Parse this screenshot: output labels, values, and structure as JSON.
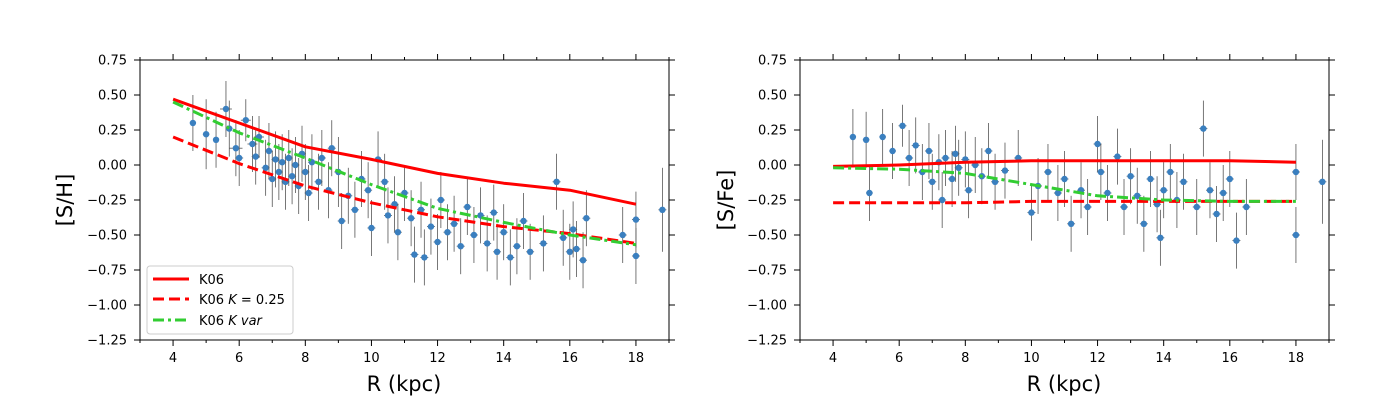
{
  "chart_data": [
    {
      "type": "scatter",
      "xlabel": "R (kpc)",
      "ylabel": "[S/H]",
      "xlim": [
        3,
        19
      ],
      "ylim": [
        -1.25,
        0.75
      ],
      "xticks": [
        4,
        6,
        8,
        10,
        12,
        14,
        16,
        18
      ],
      "xtick_labels": [
        "4",
        "6",
        "8",
        "10",
        "12",
        "14",
        "16",
        "18"
      ],
      "yticks": [
        0.75,
        0.5,
        0.25,
        0.0,
        -0.25,
        -0.5,
        -0.75,
        -1.0,
        -1.25
      ],
      "ytick_labels": [
        "0.75",
        "0.50",
        "0.25",
        "0.00",
        "−0.25",
        "−0.50",
        "−0.75",
        "−1.00",
        "−1.25"
      ],
      "legend": {
        "position": "lower-left",
        "entries": [
          "K06",
          "K06 K = 0.25",
          "K06 K var"
        ]
      },
      "lines": [
        {
          "name": "K06",
          "color": "#ff0000",
          "style": "solid",
          "x": [
            4,
            6,
            8,
            10,
            12,
            14,
            16,
            18
          ],
          "y": [
            0.47,
            0.3,
            0.13,
            0.04,
            -0.06,
            -0.13,
            -0.18,
            -0.28
          ]
        },
        {
          "name": "K06 K = 0.25",
          "color": "#ff0000",
          "style": "dashed",
          "x": [
            4,
            6,
            8,
            10,
            12,
            14,
            16,
            18
          ],
          "y": [
            0.2,
            0.01,
            -0.15,
            -0.27,
            -0.37,
            -0.44,
            -0.49,
            -0.56
          ]
        },
        {
          "name": "K06 K var",
          "color": "#32cd32",
          "style": "dashdot",
          "x": [
            4,
            6,
            8,
            10,
            12,
            14,
            16,
            18
          ],
          "y": [
            0.45,
            0.23,
            0.05,
            -0.14,
            -0.31,
            -0.41,
            -0.5,
            -0.57
          ]
        }
      ],
      "points": [
        [
          4.6,
          0.3,
          0.2,
          0.07
        ],
        [
          5.0,
          0.22,
          0.25,
          0.1
        ],
        [
          5.3,
          0.18,
          0.2,
          0.08
        ],
        [
          5.6,
          0.4,
          0.2,
          0.18
        ],
        [
          5.7,
          0.26,
          0.2,
          0.1
        ],
        [
          5.9,
          0.12,
          0.2,
          0.2
        ],
        [
          6.0,
          0.05,
          0.2,
          0.12
        ],
        [
          6.2,
          0.32,
          0.15,
          0.15
        ],
        [
          6.4,
          0.15,
          0.2,
          0.15
        ],
        [
          6.5,
          0.06,
          0.2,
          0.12
        ],
        [
          6.6,
          0.2,
          0.15,
          0.15
        ],
        [
          6.8,
          -0.02,
          0.2,
          0.12
        ],
        [
          6.9,
          0.1,
          0.2,
          0.12
        ],
        [
          7.0,
          -0.1,
          0.2,
          0.12
        ],
        [
          7.1,
          0.04,
          0.2,
          0.12
        ],
        [
          7.2,
          -0.05,
          0.2,
          0.12
        ],
        [
          7.3,
          0.02,
          0.2,
          0.12
        ],
        [
          7.4,
          -0.12,
          0.2,
          0.12
        ],
        [
          7.5,
          0.05,
          0.2,
          0.12
        ],
        [
          7.6,
          -0.08,
          0.2,
          0.12
        ],
        [
          7.7,
          0.0,
          0.2,
          0.12
        ],
        [
          7.8,
          -0.15,
          0.2,
          0.12
        ],
        [
          7.9,
          0.08,
          0.2,
          0.12
        ],
        [
          8.0,
          -0.05,
          0.2,
          0.12
        ],
        [
          8.1,
          -0.2,
          0.2,
          0.12
        ],
        [
          8.2,
          0.02,
          0.2,
          0.12
        ],
        [
          8.4,
          -0.12,
          0.2,
          0.12
        ],
        [
          8.5,
          0.05,
          0.2,
          0.12
        ],
        [
          8.7,
          -0.18,
          0.2,
          0.12
        ],
        [
          8.8,
          0.12,
          0.2,
          0.12
        ],
        [
          9.0,
          -0.05,
          0.25,
          0.12
        ],
        [
          9.1,
          -0.4,
          0.2,
          0.12
        ],
        [
          9.3,
          -0.22,
          0.2,
          0.12
        ],
        [
          9.5,
          -0.32,
          0.2,
          0.12
        ],
        [
          9.7,
          -0.1,
          0.2,
          0.12
        ],
        [
          9.9,
          -0.18,
          0.2,
          0.12
        ],
        [
          10.0,
          -0.45,
          0.2,
          0.12
        ],
        [
          10.2,
          0.04,
          0.2,
          0.12
        ],
        [
          10.4,
          -0.12,
          0.2,
          0.12
        ],
        [
          10.5,
          -0.36,
          0.2,
          0.12
        ],
        [
          10.7,
          -0.28,
          0.2,
          0.12
        ],
        [
          10.8,
          -0.48,
          0.2,
          0.12
        ],
        [
          11.0,
          -0.2,
          0.2,
          0.12
        ],
        [
          11.2,
          -0.38,
          0.2,
          0.12
        ],
        [
          11.3,
          -0.64,
          0.2,
          0.12
        ],
        [
          11.5,
          -0.32,
          0.2,
          0.12
        ],
        [
          11.6,
          -0.66,
          0.2,
          0.12
        ],
        [
          11.8,
          -0.44,
          0.2,
          0.12
        ],
        [
          12.0,
          -0.55,
          0.2,
          0.12
        ],
        [
          12.1,
          -0.25,
          0.2,
          0.12
        ],
        [
          12.3,
          -0.48,
          0.2,
          0.12
        ],
        [
          12.5,
          -0.42,
          0.2,
          0.12
        ],
        [
          12.7,
          -0.58,
          0.2,
          0.12
        ],
        [
          12.9,
          -0.3,
          0.2,
          0.12
        ],
        [
          13.1,
          -0.5,
          0.2,
          0.12
        ],
        [
          13.3,
          -0.36,
          0.2,
          0.12
        ],
        [
          13.5,
          -0.56,
          0.2,
          0.12
        ],
        [
          13.7,
          -0.34,
          0.2,
          0.12
        ],
        [
          13.8,
          -0.62,
          0.2,
          0.12
        ],
        [
          14.0,
          -0.48,
          0.2,
          0.12
        ],
        [
          14.2,
          -0.66,
          0.2,
          0.12
        ],
        [
          14.4,
          -0.58,
          0.2,
          0.12
        ],
        [
          14.6,
          -0.4,
          0.2,
          0.12
        ],
        [
          14.8,
          -0.62,
          0.2,
          0.12
        ],
        [
          15.2,
          -0.56,
          0.2,
          0.12
        ],
        [
          15.6,
          -0.12,
          0.2,
          0.12
        ],
        [
          15.8,
          -0.52,
          0.2,
          0.12
        ],
        [
          16.0,
          -0.62,
          0.2,
          0.12
        ],
        [
          16.1,
          -0.46,
          0.2,
          0.12
        ],
        [
          16.2,
          -0.6,
          0.2,
          0.12
        ],
        [
          16.4,
          -0.68,
          0.2,
          0.12
        ],
        [
          16.5,
          -0.38,
          0.2,
          0.12
        ],
        [
          17.6,
          -0.5,
          0.2,
          0.12
        ],
        [
          18.0,
          -0.65,
          0.2,
          0.12
        ],
        [
          18.0,
          -0.39,
          0.2,
          0.12
        ],
        [
          18.8,
          -0.32,
          0.3,
          0.12
        ]
      ]
    },
    {
      "type": "scatter",
      "xlabel": "R (kpc)",
      "ylabel": "[S/Fe]",
      "xlim": [
        3,
        19
      ],
      "ylim": [
        -1.25,
        0.75
      ],
      "xticks": [
        4,
        6,
        8,
        10,
        12,
        14,
        16,
        18
      ],
      "xtick_labels": [
        "4",
        "6",
        "8",
        "10",
        "12",
        "14",
        "16",
        "18"
      ],
      "yticks": [
        0.75,
        0.5,
        0.25,
        0.0,
        -0.25,
        -0.5,
        -0.75,
        -1.0,
        -1.25
      ],
      "ytick_labels": [
        "0.75",
        "0.50",
        "0.25",
        "0.00",
        "−0.25",
        "−0.50",
        "−0.75",
        "−1.00",
        "−1.25"
      ],
      "lines": [
        {
          "name": "K06",
          "color": "#ff0000",
          "style": "solid",
          "x": [
            4,
            6,
            8,
            10,
            12,
            14,
            16,
            18
          ],
          "y": [
            -0.01,
            0.0,
            0.02,
            0.03,
            0.03,
            0.03,
            0.03,
            0.02
          ]
        },
        {
          "name": "K06 K = 0.25",
          "color": "#ff0000",
          "style": "dashed",
          "x": [
            4,
            6,
            8,
            10,
            12,
            14,
            16,
            18
          ],
          "y": [
            -0.27,
            -0.27,
            -0.27,
            -0.26,
            -0.26,
            -0.26,
            -0.26,
            -0.26
          ]
        },
        {
          "name": "K06 K var",
          "color": "#32cd32",
          "style": "dashdot",
          "x": [
            4,
            6,
            8,
            10,
            12,
            14,
            16,
            18
          ],
          "y": [
            -0.02,
            -0.03,
            -0.06,
            -0.14,
            -0.22,
            -0.25,
            -0.26,
            -0.26
          ]
        }
      ],
      "points": [
        [
          4.6,
          0.2,
          0.2,
          0.07
        ],
        [
          5.0,
          0.18,
          0.2,
          0.1
        ],
        [
          5.1,
          -0.2,
          0.2,
          0.1
        ],
        [
          5.5,
          0.2,
          0.2,
          0.1
        ],
        [
          5.8,
          0.1,
          0.2,
          0.1
        ],
        [
          6.1,
          0.28,
          0.15,
          0.12
        ],
        [
          6.3,
          0.05,
          0.2,
          0.12
        ],
        [
          6.5,
          0.14,
          0.2,
          0.12
        ],
        [
          6.7,
          -0.05,
          0.2,
          0.12
        ],
        [
          6.9,
          0.1,
          0.2,
          0.12
        ],
        [
          7.0,
          -0.12,
          0.2,
          0.12
        ],
        [
          7.2,
          0.02,
          0.2,
          0.12
        ],
        [
          7.3,
          -0.25,
          0.2,
          0.12
        ],
        [
          7.4,
          0.05,
          0.2,
          0.12
        ],
        [
          7.6,
          -0.1,
          0.2,
          0.12
        ],
        [
          7.7,
          0.08,
          0.2,
          0.12
        ],
        [
          7.8,
          -0.02,
          0.2,
          0.12
        ],
        [
          8.0,
          0.04,
          0.2,
          0.12
        ],
        [
          8.1,
          -0.18,
          0.2,
          0.12
        ],
        [
          8.3,
          0.0,
          0.2,
          0.12
        ],
        [
          8.5,
          -0.08,
          0.2,
          0.12
        ],
        [
          8.7,
          0.1,
          0.2,
          0.12
        ],
        [
          8.9,
          -0.12,
          0.2,
          0.12
        ],
        [
          9.2,
          -0.04,
          0.2,
          0.12
        ],
        [
          9.6,
          0.05,
          0.2,
          0.12
        ],
        [
          10.0,
          -0.34,
          0.2,
          0.12
        ],
        [
          10.2,
          -0.15,
          0.2,
          0.12
        ],
        [
          10.5,
          -0.05,
          0.2,
          0.12
        ],
        [
          10.8,
          -0.2,
          0.2,
          0.12
        ],
        [
          11.0,
          -0.1,
          0.2,
          0.12
        ],
        [
          11.2,
          -0.42,
          0.2,
          0.12
        ],
        [
          11.5,
          -0.18,
          0.2,
          0.12
        ],
        [
          11.7,
          -0.3,
          0.2,
          0.12
        ],
        [
          12.0,
          0.15,
          0.2,
          0.12
        ],
        [
          12.1,
          -0.05,
          0.2,
          0.12
        ],
        [
          12.3,
          -0.2,
          0.2,
          0.12
        ],
        [
          12.6,
          0.06,
          0.2,
          0.12
        ],
        [
          12.8,
          -0.3,
          0.2,
          0.12
        ],
        [
          13.0,
          -0.08,
          0.2,
          0.12
        ],
        [
          13.2,
          -0.22,
          0.2,
          0.12
        ],
        [
          13.4,
          -0.42,
          0.2,
          0.12
        ],
        [
          13.6,
          -0.1,
          0.2,
          0.12
        ],
        [
          13.8,
          -0.28,
          0.2,
          0.12
        ],
        [
          13.9,
          -0.52,
          0.2,
          0.12
        ],
        [
          14.0,
          -0.18,
          0.2,
          0.12
        ],
        [
          14.2,
          -0.05,
          0.2,
          0.12
        ],
        [
          14.4,
          -0.25,
          0.2,
          0.12
        ],
        [
          14.6,
          -0.12,
          0.2,
          0.12
        ],
        [
          15.0,
          -0.3,
          0.2,
          0.12
        ],
        [
          15.2,
          0.26,
          0.2,
          0.12
        ],
        [
          15.4,
          -0.18,
          0.2,
          0.12
        ],
        [
          15.6,
          -0.35,
          0.2,
          0.12
        ],
        [
          15.8,
          -0.2,
          0.2,
          0.12
        ],
        [
          16.0,
          -0.1,
          0.2,
          0.12
        ],
        [
          16.2,
          -0.54,
          0.2,
          0.12
        ],
        [
          16.5,
          -0.3,
          0.2,
          0.12
        ],
        [
          18.0,
          -0.5,
          0.2,
          0.12
        ],
        [
          18.0,
          -0.05,
          0.2,
          0.12
        ],
        [
          18.8,
          -0.12,
          0.3,
          0.12
        ]
      ]
    }
  ]
}
